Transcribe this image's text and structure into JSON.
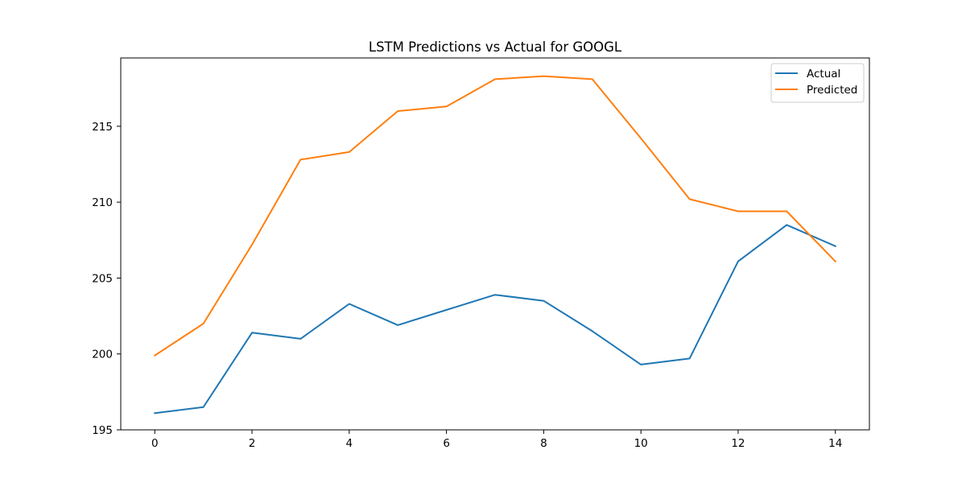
{
  "chart_data": {
    "type": "line",
    "title": "LSTM Predictions vs Actual for GOOGL",
    "xlabel": "",
    "ylabel": "",
    "xlim": [
      -0.7,
      14.7
    ],
    "ylim": [
      195,
      219.5
    ],
    "x_ticks": [
      0,
      2,
      4,
      6,
      8,
      10,
      12,
      14
    ],
    "y_ticks": [
      195,
      200,
      205,
      210,
      215
    ],
    "grid": false,
    "legend_position": "top-right",
    "x": [
      0,
      1,
      2,
      3,
      4,
      5,
      6,
      7,
      8,
      9,
      10,
      11,
      12,
      13,
      14
    ],
    "series": [
      {
        "name": "Actual",
        "color": "#1f77b4",
        "values": [
          196.1,
          196.5,
          201.4,
          201.0,
          203.3,
          201.9,
          202.9,
          203.9,
          203.5,
          201.5,
          199.3,
          199.7,
          206.1,
          208.5,
          207.1
        ]
      },
      {
        "name": "Predicted",
        "color": "#ff7f0e",
        "values": [
          199.9,
          202.0,
          207.2,
          212.8,
          213.3,
          216.0,
          216.3,
          218.1,
          218.3,
          218.1,
          214.2,
          210.2,
          209.4,
          209.4,
          206.1
        ]
      }
    ]
  }
}
